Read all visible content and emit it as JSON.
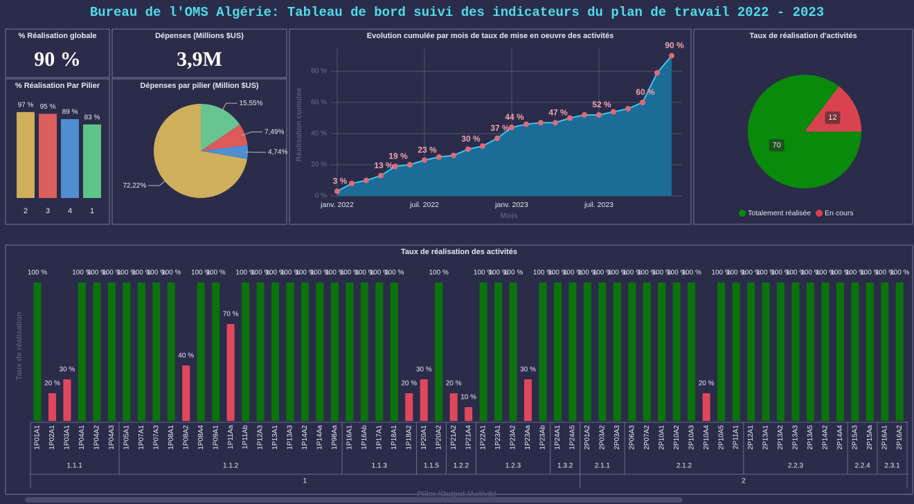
{
  "header": {
    "title": "Bureau de l'OMS Algérie: Tableau de bord suivi des indicateurs du plan de travail 2022 - 2023"
  },
  "chart_data": [
    {
      "type": "card",
      "title": "% Réalisation globale",
      "value": 90,
      "value_label": "90 %"
    },
    {
      "type": "card",
      "title": "Dépenses (Millions $US)",
      "value": 3.9,
      "value_label": "3,9M"
    },
    {
      "type": "bar",
      "title": "% Réalisation Par Pilier",
      "categories": [
        "2",
        "3",
        "4",
        "1"
      ],
      "values": [
        97,
        95,
        89,
        83
      ],
      "value_labels": [
        "97 %",
        "95 %",
        "89 %",
        "83 %"
      ],
      "colors": [
        "#cfae5c",
        "#db5f5f",
        "#4f8ed0",
        "#5ec48a"
      ],
      "ylim": [
        0,
        100
      ]
    },
    {
      "type": "pie",
      "title": "Dépenses par pilier (Million $US)",
      "values": [
        15.55,
        7.49,
        4.74,
        72.22
      ],
      "value_labels": [
        "15,55%",
        "7,49%",
        "4,74%",
        "72,22%"
      ],
      "colors": [
        "#68c490",
        "#dd5a5a",
        "#4f8ed0",
        "#cfae5c"
      ]
    },
    {
      "type": "area",
      "title": "Evolution cumulée par mois de taux de mise en oeuvre des activités",
      "x_label": "Mois",
      "y_label": "Réalisation cumulée",
      "categories": [
        "janv. 2022",
        null,
        null,
        null,
        null,
        null,
        "juil. 2022",
        null,
        null,
        null,
        null,
        null,
        "janv. 2023",
        null,
        null,
        null,
        null,
        null,
        "juil. 2023",
        null,
        null,
        null,
        null,
        null
      ],
      "values": [
        3,
        8,
        10,
        13,
        19,
        20,
        23,
        25,
        26,
        30,
        32,
        37,
        44,
        46,
        47,
        47,
        50,
        52,
        52,
        54,
        56,
        60,
        79,
        90
      ],
      "value_labels": [
        "3 %",
        null,
        null,
        "13 %",
        "19 %",
        null,
        "23 %",
        null,
        null,
        "30 %",
        null,
        "37 %",
        "44 %",
        null,
        null,
        "47 %",
        null,
        null,
        "52 %",
        null,
        null,
        "60 %",
        null,
        "90 %"
      ],
      "ylim": [
        0,
        92
      ],
      "yticks": [
        {
          "value": 0,
          "label": "0 %"
        },
        {
          "value": 20,
          "label": "20 %"
        },
        {
          "value": 40,
          "label": "40 %"
        },
        {
          "value": 60,
          "label": "60 %"
        },
        {
          "value": 80,
          "label": "80 %"
        }
      ],
      "grid": true,
      "color": "#1c6c98",
      "line_color": "#3ec6ee",
      "marker_color": "#e06a78"
    },
    {
      "type": "pie",
      "title": "Taux de réalisation d'activités",
      "categories": [
        "Totalement réalisée",
        "En cours"
      ],
      "values": [
        70,
        12
      ],
      "colors": [
        "#0a8a0a",
        "#d9434f"
      ],
      "legend": "bottom"
    },
    {
      "type": "grouped_bar",
      "title": "Taux de réalisation des activités",
      "x_label": "Pilier /Output /Activité",
      "y_label": "Taux de réalisation",
      "ylim": [
        0,
        100
      ],
      "pillars": [
        {
          "label": "1",
          "outputs": [
            {
              "label": "1.1.1",
              "activities": [
                {
                  "name": "1P01A1",
                  "value": 100,
                  "label": "100 %",
                  "color": "#0b730b"
                },
                {
                  "name": "1P02A1",
                  "value": 20,
                  "label": "20 %",
                  "color": "#e0475b"
                },
                {
                  "name": "1P03A1",
                  "value": 30,
                  "label": "30 %",
                  "color": "#e0475b"
                },
                {
                  "name": "1P04A1",
                  "value": 100,
                  "label": "100 %",
                  "color": "#0b730b"
                },
                {
                  "name": "1P04A2",
                  "value": 100,
                  "label": "100 %",
                  "color": "#0b730b"
                },
                {
                  "name": "1P04A3",
                  "value": 100,
                  "label": "100 %",
                  "color": "#0b730b"
                }
              ]
            },
            {
              "label": "1.1.2",
              "activities": [
                {
                  "name": "1P05A1",
                  "value": 100,
                  "label": "100 %",
                  "color": "#0b730b"
                },
                {
                  "name": "1P07A1",
                  "value": 100,
                  "label": "100 %",
                  "color": "#0b730b"
                },
                {
                  "name": "1P07A3",
                  "value": 100,
                  "label": "100 %",
                  "color": "#0b730b"
                },
                {
                  "name": "1P08A1",
                  "value": 100,
                  "label": "100 %",
                  "color": "#0b730b"
                },
                {
                  "name": "1P08A2",
                  "value": 40,
                  "label": "40 %",
                  "color": "#e0475b"
                },
                {
                  "name": "1P08A4",
                  "value": 100,
                  "label": "100 %",
                  "color": "#0b730b"
                },
                {
                  "name": "1P09A1",
                  "value": 100,
                  "label": "100 %",
                  "color": "#0b730b"
                },
                {
                  "name": "1P11Aa",
                  "value": 70,
                  "label": "70 %",
                  "color": "#e0475b"
                },
                {
                  "name": "1P11Ab",
                  "value": 100,
                  "label": "100 %",
                  "color": "#0b730b"
                },
                {
                  "name": "1P12A3",
                  "value": 100,
                  "label": "100 %",
                  "color": "#0b730b"
                },
                {
                  "name": "1P13A1",
                  "value": 100,
                  "label": "100 %",
                  "color": "#0b730b"
                },
                {
                  "name": "1P13A3",
                  "value": 100,
                  "label": "100 %",
                  "color": "#0b730b"
                },
                {
                  "name": "1P14A2",
                  "value": 100,
                  "label": "100 %",
                  "color": "#0b730b"
                },
                {
                  "name": "1P14Aa",
                  "value": 100,
                  "label": "100 %",
                  "color": "#0b730b"
                },
                {
                  "name": "1P98Aa",
                  "value": 100,
                  "label": "100 %",
                  "color": "#0b730b"
                }
              ]
            },
            {
              "label": "1.1.3",
              "activities": [
                {
                  "name": "1P16A1",
                  "value": 100,
                  "label": "100 %",
                  "color": "#0b730b"
                },
                {
                  "name": "1P16Ab",
                  "value": 100,
                  "label": "100 %",
                  "color": "#0b730b"
                },
                {
                  "name": "1P17A1",
                  "value": 100,
                  "label": "100 %",
                  "color": "#0b730b"
                },
                {
                  "name": "1P18A1",
                  "value": 100,
                  "label": "100 %",
                  "color": "#0b730b"
                },
                {
                  "name": "1P18A2",
                  "value": 20,
                  "label": "20 %",
                  "color": "#e0475b"
                }
              ]
            },
            {
              "label": "1.1.5",
              "activities": [
                {
                  "name": "1P20A1",
                  "value": 30,
                  "label": "30 %",
                  "color": "#e0475b"
                },
                {
                  "name": "1P20A2",
                  "value": 100,
                  "label": "100 %",
                  "color": "#0b730b"
                }
              ]
            },
            {
              "label": "1.2.2",
              "activities": [
                {
                  "name": "1P21A2",
                  "value": 20,
                  "label": "20 %",
                  "color": "#e0475b"
                },
                {
                  "name": "1P21A4",
                  "value": 10,
                  "label": "10 %",
                  "color": "#e0475b"
                }
              ]
            },
            {
              "label": "1.2.3",
              "activities": [
                {
                  "name": "1P22A1",
                  "value": 100,
                  "label": "100 %",
                  "color": "#0b730b"
                },
                {
                  "name": "1P23A1",
                  "value": 100,
                  "label": "100 %",
                  "color": "#0b730b"
                },
                {
                  "name": "1P23A2",
                  "value": 100,
                  "label": "100 %",
                  "color": "#0b730b"
                },
                {
                  "name": "1P23Aa",
                  "value": 30,
                  "label": "30 %",
                  "color": "#e0475b"
                },
                {
                  "name": "1P23Ab",
                  "value": 100,
                  "label": "100 %",
                  "color": "#0b730b"
                }
              ]
            },
            {
              "label": "1.3.2",
              "activities": [
                {
                  "name": "1P24A1",
                  "value": 100,
                  "label": "100 %",
                  "color": "#0b730b"
                },
                {
                  "name": "1P24A5",
                  "value": 100,
                  "label": "100 %",
                  "color": "#0b730b"
                }
              ]
            }
          ]
        },
        {
          "label": "2",
          "outputs": [
            {
              "label": "2.1.1",
              "activities": [
                {
                  "name": "2P01A2",
                  "value": 100,
                  "label": "100 %",
                  "color": "#0b730b"
                },
                {
                  "name": "2P03A2",
                  "value": 100,
                  "label": "100 %",
                  "color": "#0b730b"
                },
                {
                  "name": "2P03A3",
                  "value": 100,
                  "label": "100 %",
                  "color": "#0b730b"
                }
              ]
            },
            {
              "label": "2.1.2",
              "activities": [
                {
                  "name": "2P06A3",
                  "value": 100,
                  "label": "100 %",
                  "color": "#0b730b"
                },
                {
                  "name": "2P07A2",
                  "value": 100,
                  "label": "100 %",
                  "color": "#0b730b"
                },
                {
                  "name": "2P10A1",
                  "value": 100,
                  "label": "100 %",
                  "color": "#0b730b"
                },
                {
                  "name": "2P10A2",
                  "value": 100,
                  "label": "100 %",
                  "color": "#0b730b"
                },
                {
                  "name": "2P10A3",
                  "value": 100,
                  "label": "100 %",
                  "color": "#0b730b"
                },
                {
                  "name": "2P10A4",
                  "value": 20,
                  "label": "20 %",
                  "color": "#e0475b"
                },
                {
                  "name": "2P10A5",
                  "value": 100,
                  "label": "100 %",
                  "color": "#0b730b"
                },
                {
                  "name": "2P11A1",
                  "value": 100,
                  "label": "100 %",
                  "color": "#0b730b"
                }
              ]
            },
            {
              "label": "2.2.3",
              "activities": [
                {
                  "name": "2P12A1",
                  "value": 100,
                  "label": "100 %",
                  "color": "#0b730b"
                },
                {
                  "name": "2P13A1",
                  "value": 100,
                  "label": "100 %",
                  "color": "#0b730b"
                },
                {
                  "name": "2P13A2",
                  "value": 100,
                  "label": "100 %",
                  "color": "#0b730b"
                },
                {
                  "name": "2P13A3",
                  "value": 100,
                  "label": "100 %",
                  "color": "#0b730b"
                },
                {
                  "name": "2P13A5",
                  "value": 100,
                  "label": "100 %",
                  "color": "#0b730b"
                },
                {
                  "name": "2P14A2",
                  "value": 100,
                  "label": "100 %",
                  "color": "#0b730b"
                },
                {
                  "name": "2P14A4",
                  "value": 100,
                  "label": "100 %",
                  "color": "#0b730b"
                }
              ]
            },
            {
              "label": "2.2.4",
              "activities": [
                {
                  "name": "2P15A3",
                  "value": 100,
                  "label": "100 %",
                  "color": "#0b730b"
                },
                {
                  "name": "2P15Aa",
                  "value": 100,
                  "label": "100 %",
                  "color": "#0b730b"
                }
              ]
            },
            {
              "label": "2.3.1",
              "activities": [
                {
                  "name": "2P16A1",
                  "value": 100,
                  "label": "100 %",
                  "color": "#0b730b"
                },
                {
                  "name": "2P16A2",
                  "value": 100,
                  "label": "100 %",
                  "color": "#0b730b"
                }
              ]
            }
          ]
        }
      ]
    }
  ]
}
